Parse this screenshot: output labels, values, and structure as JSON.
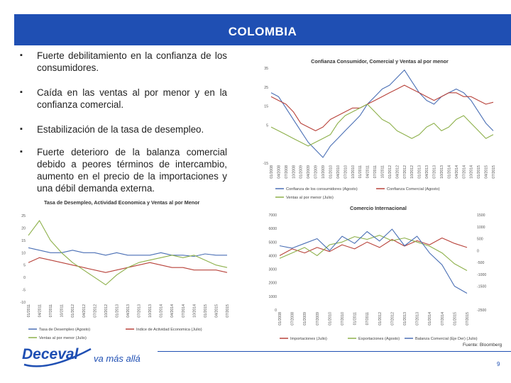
{
  "header": {
    "title": "COLOMBIA"
  },
  "bullets": [
    {
      "text": "Fuerte debilitamiento en la confianza de los consumidores."
    },
    {
      "text": "Caída en las ventas al por menor y en la confianza comercial."
    },
    {
      "text": "Estabilización de la tasa de desempleo."
    },
    {
      "text": "Fuerte deterioro de la balanza comercial debido a peores términos de intercambio, aumento en el precio de la importaciones y una débil demanda externa."
    }
  ],
  "bullet_symbol": "▪",
  "source": "Fuente: Bloomberg",
  "page_number": "9",
  "logo": {
    "name": "Deceval",
    "tagline": "va más allá"
  },
  "colors": {
    "banner": "#1f4fb3",
    "blue": "#4a6fb5",
    "red": "#b8423a",
    "green": "#8db04a"
  },
  "chart_data": [
    {
      "type": "line",
      "title": "Confianza Consumidor, Comercial y Ventas al por menor",
      "ylim": [
        -15,
        35
      ],
      "yticks": [
        -15,
        5,
        15,
        25,
        35
      ],
      "x_labels": [
        "01/2008",
        "04/2008",
        "07/2008",
        "10/2008",
        "01/2009",
        "04/2009",
        "07/2009",
        "10/2009",
        "01/2010",
        "04/2010",
        "07/2010",
        "10/2010",
        "01/2011",
        "04/2011",
        "07/2011",
        "10/2011",
        "01/2012",
        "04/2012",
        "07/2012",
        "10/2012",
        "01/2013",
        "04/2013",
        "07/2013",
        "10/2013",
        "01/2014",
        "04/2014",
        "07/2014",
        "10/2014",
        "01/2015",
        "04/2015",
        "07/2015"
      ],
      "series": [
        {
          "name": "Confianza de los consumidores (Agosto)",
          "color": "#4a6fb5",
          "values": [
            22,
            20,
            14,
            8,
            2,
            -4,
            -8,
            -12,
            -6,
            -2,
            2,
            6,
            10,
            16,
            20,
            24,
            26,
            30,
            34,
            28,
            22,
            18,
            16,
            20,
            22,
            24,
            22,
            18,
            12,
            6,
            2
          ]
        },
        {
          "name": "Confianza Comercial (Agosto)",
          "color": "#b8423a",
          "values": [
            20,
            18,
            16,
            12,
            6,
            4,
            2,
            4,
            8,
            10,
            12,
            14,
            14,
            16,
            18,
            20,
            22,
            24,
            26,
            24,
            22,
            20,
            18,
            20,
            22,
            22,
            20,
            20,
            18,
            16,
            17
          ]
        },
        {
          "name": "Ventas al por menor (Julio)",
          "color": "#8db04a",
          "values": [
            4,
            2,
            0,
            -2,
            -4,
            -6,
            -4,
            -2,
            0,
            6,
            10,
            12,
            14,
            16,
            12,
            8,
            6,
            2,
            0,
            -2,
            0,
            4,
            6,
            2,
            4,
            8,
            10,
            6,
            2,
            -2,
            0
          ]
        }
      ]
    },
    {
      "type": "line",
      "title": "Tasa de Desempleo, Actividad Economica y Ventas al por Menor",
      "ylim": [
        -10,
        25
      ],
      "yticks": [
        -10,
        -5,
        0,
        5,
        10,
        15,
        20,
        25
      ],
      "x_labels": [
        "01/2011",
        "04/2011",
        "07/2011",
        "10/2011",
        "01/2012",
        "04/2012",
        "07/2012",
        "10/2012",
        "01/2013",
        "04/2013",
        "07/2013",
        "10/2013",
        "01/2014",
        "04/2014",
        "07/2014",
        "10/2014",
        "01/2015",
        "04/2015",
        "07/2015"
      ],
      "series": [
        {
          "name": "Tasa de Desempleo (Agosto)",
          "color": "#4a6fb5",
          "values": [
            12,
            11,
            10,
            10,
            11,
            10,
            10,
            9,
            10,
            9,
            9,
            9,
            10,
            9,
            9,
            8.5,
            9.5,
            9,
            9
          ]
        },
        {
          "name": "Indice de Actividad Economica (Julio)",
          "color": "#b8423a",
          "values": [
            6,
            8,
            7,
            6,
            5,
            4,
            3,
            2,
            3,
            4,
            5,
            6,
            5,
            4,
            4,
            3,
            3,
            3,
            2
          ]
        },
        {
          "name": "Ventas al por menor (Julio)",
          "color": "#8db04a",
          "values": [
            17,
            23,
            15,
            10,
            6,
            3,
            0,
            -3,
            1,
            4,
            6,
            7,
            8,
            9,
            8,
            9,
            7,
            5,
            4
          ]
        }
      ]
    },
    {
      "type": "line",
      "title": "Comercio Internacional",
      "ylim_left": [
        0,
        7000
      ],
      "yticks_left": [
        0,
        1000,
        2000,
        3000,
        4000,
        5000,
        6000,
        7000
      ],
      "ylim_right": [
        -2500,
        1500
      ],
      "yticks_right": [
        -2500,
        -1500,
        -1000,
        -500,
        0,
        500,
        1000,
        1500
      ],
      "x_labels": [
        "01/2008",
        "07/2008",
        "01/2009",
        "07/2009",
        "01/2010",
        "07/2010",
        "01/2011",
        "07/2011",
        "01/2012",
        "07/2012",
        "01/2013",
        "07/2013",
        "01/2014",
        "07/2014",
        "01/2015",
        "07/2015"
      ],
      "series": [
        {
          "name": "Importaciones (Julio)",
          "color": "#b8423a",
          "axis": "left",
          "values": [
            4000,
            4500,
            4200,
            4600,
            4300,
            4800,
            4500,
            5000,
            4600,
            5200,
            4700,
            5100,
            4800,
            5300,
            4900,
            4600
          ]
        },
        {
          "name": "Exportaciones (Agosto)",
          "color": "#8db04a",
          "axis": "left",
          "values": [
            3800,
            4200,
            4600,
            4000,
            4800,
            5000,
            5400,
            5200,
            5500,
            5100,
            5300,
            5000,
            4700,
            4200,
            3400,
            2900
          ]
        },
        {
          "name": "Balanza Comercial (Eje Der) (Julio)",
          "color": "#4a6fb5",
          "axis": "right",
          "values": [
            200,
            100,
            300,
            500,
            0,
            600,
            300,
            800,
            400,
            900,
            200,
            600,
            -100,
            -600,
            -1500,
            -1800
          ]
        }
      ]
    }
  ]
}
